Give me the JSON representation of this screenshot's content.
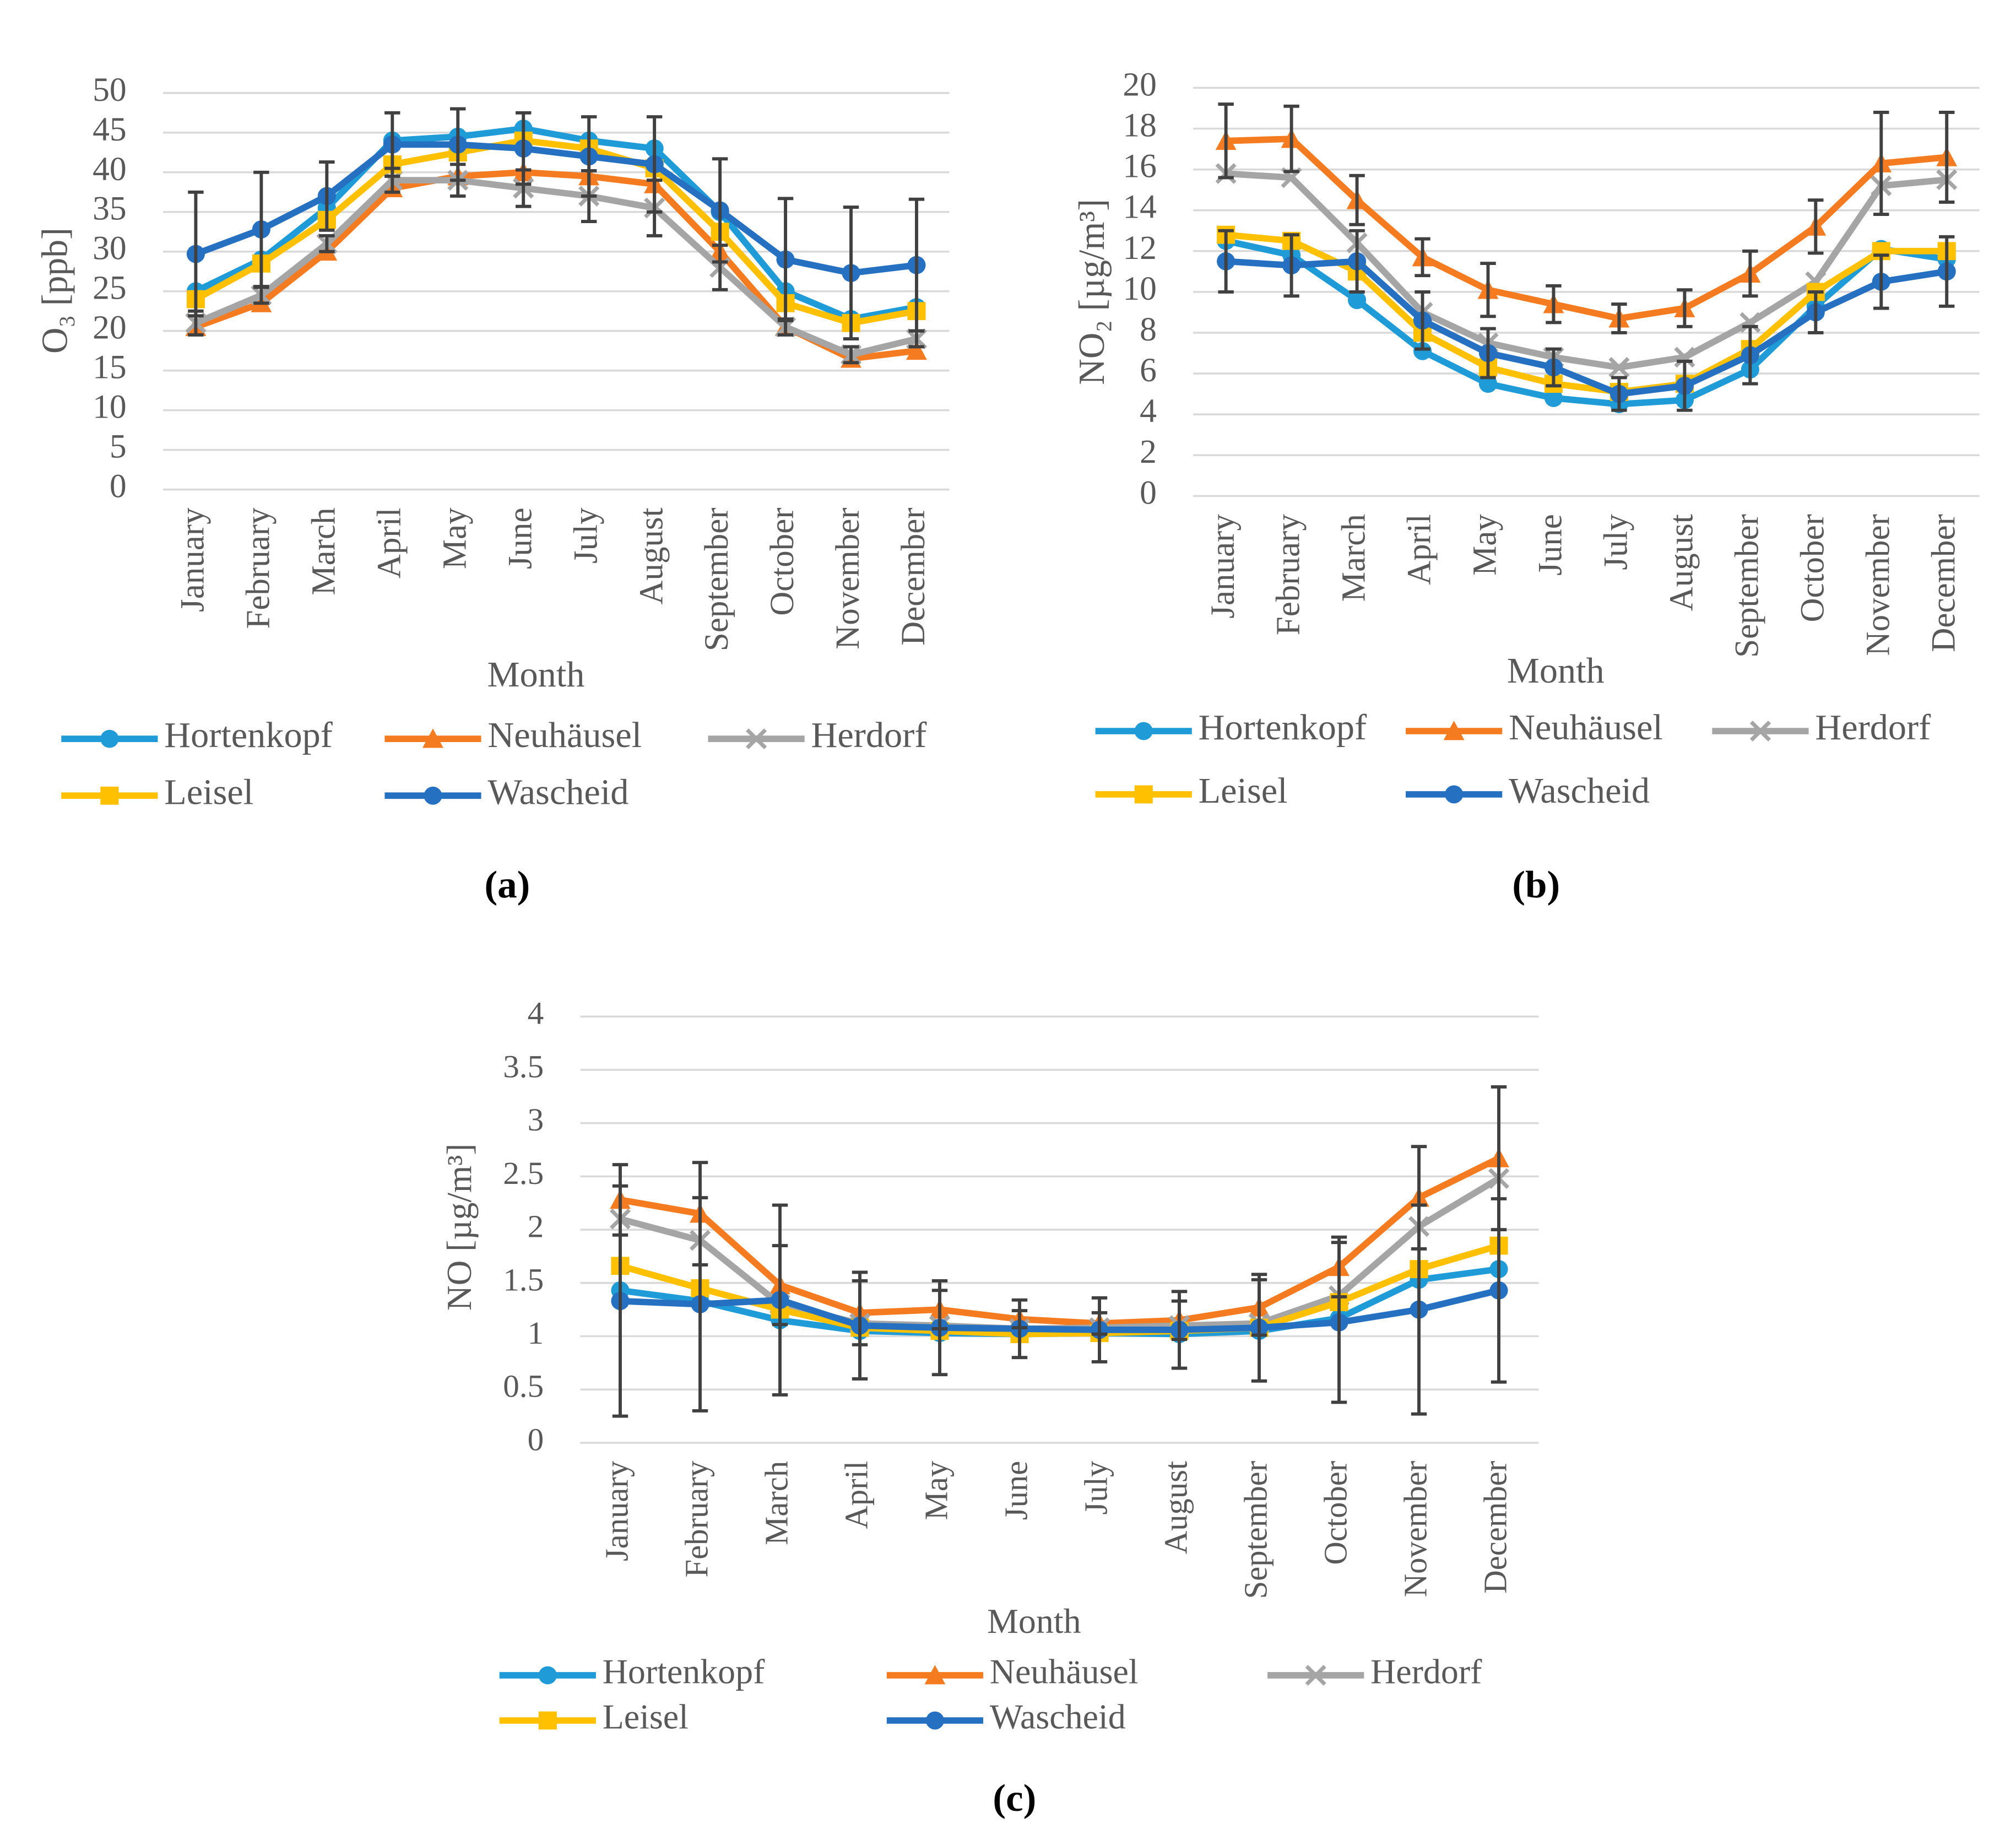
{
  "charts": [
    {
      "chart_data": {
        "type": "line",
        "panel_label": "(a)",
        "y_label": "O₃ [ppb]",
        "x_label": "Month",
        "categories": [
          "January",
          "February",
          "March",
          "April",
          "May",
          "June",
          "July",
          "August",
          "September",
          "October",
          "November",
          "December"
        ],
        "ylim": [
          0,
          50
        ],
        "yticks": [
          0,
          5,
          10,
          15,
          20,
          25,
          30,
          35,
          40,
          45,
          50
        ],
        "grid": true,
        "series": [
          {
            "name": "Hortenkopf",
            "color": "#1f9bd7",
            "marker": "circle",
            "values": [
              25,
              29,
              35.5,
              44,
              44.5,
              45.5,
              44,
              43,
              35,
              25,
              21.5,
              23
            ]
          },
          {
            "name": "Neuhäusel",
            "color": "#f47b20",
            "marker": "triangle",
            "values": [
              20.5,
              23.5,
              30,
              38,
              39.5,
              40,
              39.5,
              38.5,
              30,
              20.5,
              16.5,
              17.5
            ]
          },
          {
            "name": "Herdorf",
            "color": "#a5a5a5",
            "marker": "x",
            "values": [
              21,
              24.5,
              31,
              39,
              39,
              38,
              37,
              35.5,
              28,
              20.5,
              17,
              19
            ],
            "errors": [
              1.5,
              1,
              1,
              1.5,
              2,
              2.3,
              3.2,
              3.5,
              2.8,
              1,
              1,
              1
            ]
          },
          {
            "name": "Leisel",
            "color": "#ffc000",
            "marker": "square",
            "values": [
              24,
              28.5,
              34,
              41,
              42.5,
              44,
              43,
              40.5,
              32.5,
              23.5,
              21,
              22.5
            ]
          },
          {
            "name": "Wascheid",
            "color": "#2570c0",
            "marker": "circle",
            "values": [
              29.7,
              32.8,
              37,
              43.5,
              43.5,
              43,
              42,
              41,
              35.2,
              29,
              27.3,
              28.3
            ],
            "errors": [
              7.8,
              7.2,
              4.3,
              4,
              4.5,
              4.5,
              5,
              6,
              6.5,
              7.7,
              8.3,
              8.3
            ]
          }
        ]
      }
    },
    {
      "chart_data": {
        "type": "line",
        "panel_label": "(b)",
        "y_label": "NO₂ [µg/m³]",
        "x_label": "Month",
        "categories": [
          "January",
          "February",
          "March",
          "April",
          "May",
          "June",
          "July",
          "August",
          "September",
          "October",
          "November",
          "December"
        ],
        "ylim": [
          0,
          20
        ],
        "yticks": [
          0,
          2,
          4,
          6,
          8,
          10,
          12,
          14,
          16,
          18,
          20
        ],
        "grid": true,
        "series": [
          {
            "name": "Hortenkopf",
            "color": "#1f9bd7",
            "marker": "circle",
            "values": [
              12.5,
              11.8,
              9.6,
              7.1,
              5.5,
              4.8,
              4.5,
              4.7,
              6.2,
              9.3,
              12.1,
              11.6
            ]
          },
          {
            "name": "Neuhäusel",
            "color": "#f47b20",
            "marker": "triangle",
            "values": [
              17.4,
              17.5,
              14.5,
              11.7,
              10.1,
              9.4,
              8.7,
              9.2,
              10.9,
              13.2,
              16.3,
              16.6
            ],
            "errors": [
              1.8,
              1.6,
              1.2,
              0.9,
              1.3,
              0.9,
              0.7,
              0.9,
              1.1,
              1.3,
              2.5,
              2.2
            ]
          },
          {
            "name": "Herdorf",
            "color": "#a5a5a5",
            "marker": "x",
            "values": [
              15.8,
              15.6,
              12.4,
              9,
              7.5,
              6.8,
              6.3,
              6.8,
              8.5,
              10.5,
              15.2,
              15.5
            ]
          },
          {
            "name": "Leisel",
            "color": "#ffc000",
            "marker": "square",
            "values": [
              12.8,
              12.5,
              11,
              8,
              6.3,
              5.5,
              5.1,
              5.5,
              7.2,
              10,
              12,
              12
            ]
          },
          {
            "name": "Wascheid",
            "color": "#2570c0",
            "marker": "circle",
            "values": [
              11.5,
              11.3,
              11.5,
              8.6,
              7,
              6.3,
              5,
              5.4,
              6.9,
              9,
              10.5,
              11
            ],
            "errors": [
              1.5,
              1.5,
              1.5,
              1.4,
              1.2,
              0.9,
              0.8,
              1.2,
              1.4,
              1,
              1.3,
              1.7
            ]
          }
        ]
      }
    },
    {
      "chart_data": {
        "type": "line",
        "panel_label": "(c)",
        "y_label": "NO [µg/m³]",
        "x_label": "Month",
        "categories": [
          "January",
          "February",
          "March",
          "April",
          "May",
          "June",
          "July",
          "August",
          "September",
          "October",
          "November",
          "December"
        ],
        "ylim": [
          0,
          4
        ],
        "yticks": [
          0,
          0.5,
          1,
          1.5,
          2,
          2.5,
          3,
          3.5,
          4
        ],
        "grid": true,
        "series": [
          {
            "name": "Hortenkopf",
            "color": "#1f9bd7",
            "marker": "circle",
            "values": [
              1.43,
              1.33,
              1.15,
              1.05,
              1.03,
              1.02,
              1.03,
              1.02,
              1.05,
              1.17,
              1.53,
              1.63
            ]
          },
          {
            "name": "Neuhäusel",
            "color": "#f47b20",
            "marker": "triangle",
            "values": [
              2.28,
              2.15,
              1.48,
              1.22,
              1.25,
              1.16,
              1.12,
              1.15,
              1.27,
              1.65,
              2.3,
              2.67
            ],
            "errors": [
              0.33,
              0.48,
              0.37,
              0.3,
              0.18,
              0.08,
              0.1,
              0.18,
              0.26,
              0.28,
              0.48,
              0.67
            ]
          },
          {
            "name": "Herdorf",
            "color": "#a5a5a5",
            "marker": "x",
            "values": [
              2.1,
              1.9,
              1.3,
              1.12,
              1.1,
              1.07,
              1.08,
              1.1,
              1.12,
              1.38,
              2.03,
              2.48
            ]
          },
          {
            "name": "Leisel",
            "color": "#ffc000",
            "marker": "square",
            "values": [
              1.66,
              1.45,
              1.25,
              1.08,
              1.05,
              1.02,
              1.03,
              1.05,
              1.08,
              1.32,
              1.63,
              1.85
            ]
          },
          {
            "name": "Wascheid",
            "color": "#2570c0",
            "marker": "circle",
            "values": [
              1.33,
              1.3,
              1.34,
              1.1,
              1.08,
              1.07,
              1.06,
              1.06,
              1.08,
              1.13,
              1.25,
              1.43
            ],
            "errors": [
              1.08,
              1.0,
              0.89,
              0.5,
              0.44,
              0.27,
              0.3,
              0.36,
              0.5,
              0.75,
              0.98,
              0.86
            ]
          }
        ]
      }
    }
  ]
}
